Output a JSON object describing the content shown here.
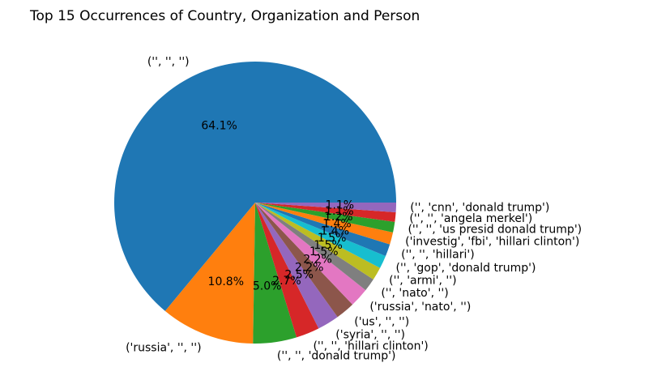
{
  "chart_data": {
    "type": "pie",
    "title": "Top 15 Occurrences of Country, Organization and Person",
    "start_angle_deg": 0,
    "direction": "counterclockwise",
    "slices": [
      {
        "label": "('', '', '')",
        "pct_label": "64.1%",
        "value": 64.1,
        "color": "#1f77b4"
      },
      {
        "label": "('russia', '', '')",
        "pct_label": "10.8%",
        "value": 10.8,
        "color": "#ff7f0e"
      },
      {
        "label": "('', '', 'donald trump')",
        "pct_label": "5.0%",
        "value": 5.0,
        "color": "#2ca02c"
      },
      {
        "label": "('', '', 'hillari clinton')",
        "pct_label": "2.7%",
        "value": 2.7,
        "color": "#d62728"
      },
      {
        "label": "('syria', '', '')",
        "pct_label": "2.5%",
        "value": 2.5,
        "color": "#9467bd"
      },
      {
        "label": "('us', '', '')",
        "pct_label": "2.2%",
        "value": 2.2,
        "color": "#8c564b"
      },
      {
        "label": "('russia', 'nato', '')",
        "pct_label": "2.2%",
        "value": 2.2,
        "color": "#e377c2"
      },
      {
        "label": "('', 'nato', '')",
        "pct_label": "1.5%",
        "value": 1.5,
        "color": "#7f7f7f"
      },
      {
        "label": "('', 'armi', '')",
        "pct_label": "1.5%",
        "value": 1.5,
        "color": "#bcbd22"
      },
      {
        "label": "('', 'gop', 'donald trump')",
        "pct_label": "1.5%",
        "value": 1.5,
        "color": "#17becf"
      },
      {
        "label": "('', '', 'hillari')",
        "pct_label": "1.4%",
        "value": 1.4,
        "color": "#1f77b4"
      },
      {
        "label": "('investig', 'fbi', 'hillari clinton')",
        "pct_label": "1.4%",
        "value": 1.4,
        "color": "#ff7f0e"
      },
      {
        "label": "('', '', 'us presid donald trump')",
        "pct_label": "1.2%",
        "value": 1.2,
        "color": "#2ca02c"
      },
      {
        "label": "('', '', 'angela merkel')",
        "pct_label": "1.1%",
        "value": 1.1,
        "color": "#d62728"
      },
      {
        "label": "('', 'cnn', 'donald trump')",
        "pct_label": "1.1%",
        "value": 1.1,
        "color": "#9467bd"
      }
    ]
  }
}
